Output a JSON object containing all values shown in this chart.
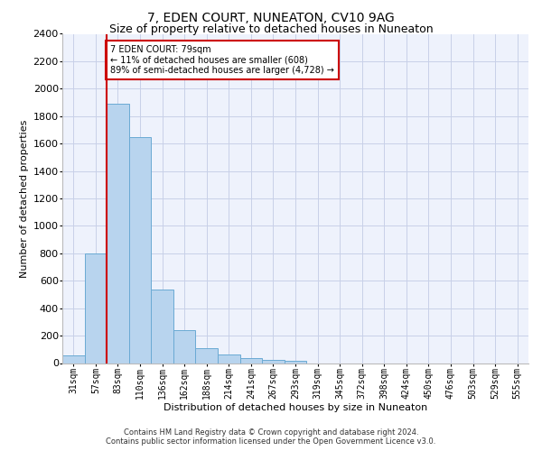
{
  "title": "7, EDEN COURT, NUNEATON, CV10 9AG",
  "subtitle": "Size of property relative to detached houses in Nuneaton",
  "xlabel": "Distribution of detached houses by size in Nuneaton",
  "ylabel": "Number of detached properties",
  "categories": [
    "31sqm",
    "57sqm",
    "83sqm",
    "110sqm",
    "136sqm",
    "162sqm",
    "188sqm",
    "214sqm",
    "241sqm",
    "267sqm",
    "293sqm",
    "319sqm",
    "345sqm",
    "372sqm",
    "398sqm",
    "424sqm",
    "450sqm",
    "476sqm",
    "503sqm",
    "529sqm",
    "555sqm"
  ],
  "values": [
    55,
    800,
    1890,
    1650,
    535,
    240,
    110,
    60,
    38,
    25,
    18,
    0,
    0,
    0,
    0,
    0,
    0,
    0,
    0,
    0,
    0
  ],
  "bar_color": "#b8d4ee",
  "bar_edge_color": "#6aaad4",
  "highlight_color": "#cc0000",
  "annotation_text": "7 EDEN COURT: 79sqm\n← 11% of detached houses are smaller (608)\n89% of semi-detached houses are larger (4,728) →",
  "annotation_box_color": "#cc0000",
  "ylim": [
    0,
    2400
  ],
  "yticks": [
    0,
    200,
    400,
    600,
    800,
    1000,
    1200,
    1400,
    1600,
    1800,
    2000,
    2200,
    2400
  ],
  "footer_line1": "Contains HM Land Registry data © Crown copyright and database right 2024.",
  "footer_line2": "Contains public sector information licensed under the Open Government Licence v3.0.",
  "bg_color": "#eef2fc",
  "grid_color": "#c8d0e8",
  "title_fontsize": 10,
  "subtitle_fontsize": 9,
  "ylabel_fontsize": 8,
  "xlabel_fontsize": 8,
  "tick_fontsize": 7,
  "footer_fontsize": 6
}
